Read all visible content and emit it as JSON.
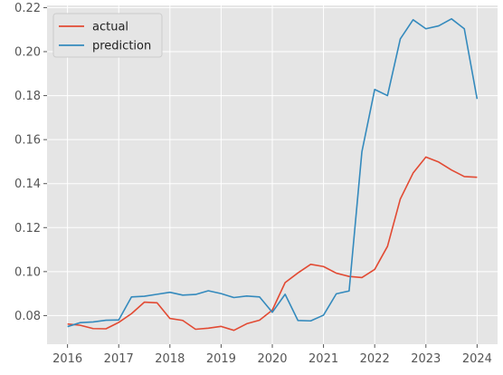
{
  "chart_data": {
    "type": "line",
    "title": "",
    "xlabel": "",
    "ylabel": "",
    "xlim": [
      2015.6,
      2024.4
    ],
    "ylim": [
      0.067,
      0.221
    ],
    "grid": true,
    "legend_position": "top-left",
    "x_ticks": [
      2016,
      2017,
      2018,
      2019,
      2020,
      2021,
      2022,
      2023,
      2024
    ],
    "x_tick_labels": [
      "2016",
      "2017",
      "2018",
      "2019",
      "2020",
      "2021",
      "2022",
      "2023",
      "2024"
    ],
    "y_ticks": [
      0.08,
      0.1,
      0.12,
      0.14,
      0.16,
      0.18,
      0.2,
      0.22
    ],
    "y_tick_labels": [
      "0.08",
      "0.10",
      "0.12",
      "0.14",
      "0.16",
      "0.18",
      "0.20",
      "0.22"
    ],
    "x": [
      "2016-01",
      "2016-04",
      "2016-07",
      "2016-10",
      "2017-01",
      "2017-04",
      "2017-07",
      "2017-10",
      "2018-01",
      "2018-04",
      "2018-07",
      "2018-10",
      "2019-01",
      "2019-04",
      "2019-07",
      "2019-10",
      "2020-01",
      "2020-04",
      "2020-07",
      "2020-10",
      "2021-01",
      "2021-04",
      "2021-07",
      "2021-10",
      "2022-01",
      "2022-04",
      "2022-07",
      "2022-10",
      "2023-01",
      "2023-04",
      "2023-07",
      "2023-10",
      "2024-01"
    ],
    "x_numeric": [
      2016.0,
      2016.25,
      2016.5,
      2016.75,
      2017.0,
      2017.25,
      2017.5,
      2017.75,
      2018.0,
      2018.25,
      2018.5,
      2018.75,
      2019.0,
      2019.25,
      2019.5,
      2019.75,
      2020.0,
      2020.25,
      2020.5,
      2020.75,
      2021.0,
      2021.25,
      2021.5,
      2021.75,
      2022.0,
      2022.25,
      2022.5,
      2022.75,
      2023.0,
      2023.25,
      2023.5,
      2023.75,
      2024.0
    ],
    "series": [
      {
        "name": "actual",
        "color": "#E24A33",
        "values": [
          0.0762,
          0.0756,
          0.0741,
          0.074,
          0.0769,
          0.0809,
          0.0861,
          0.0858,
          0.0787,
          0.0778,
          0.0738,
          0.0743,
          0.0751,
          0.0733,
          0.0763,
          0.0779,
          0.0825,
          0.095,
          0.0994,
          0.1033,
          0.1023,
          0.0993,
          0.0978,
          0.0973,
          0.101,
          0.1115,
          0.133,
          0.1448,
          0.1521,
          0.1498,
          0.1462,
          0.1432,
          0.1429
        ]
      },
      {
        "name": "prediction",
        "color": "#348ABD",
        "values": [
          0.075,
          0.0768,
          0.0771,
          0.0779,
          0.078,
          0.0885,
          0.0888,
          0.0897,
          0.0906,
          0.0893,
          0.0896,
          0.0913,
          0.09,
          0.0882,
          0.0889,
          0.0885,
          0.0815,
          0.0897,
          0.0778,
          0.0776,
          0.0802,
          0.0899,
          0.0912,
          0.1545,
          0.1828,
          0.18,
          0.2058,
          0.2145,
          0.2104,
          0.2117,
          0.2149,
          0.2104,
          0.1785
        ]
      }
    ]
  }
}
